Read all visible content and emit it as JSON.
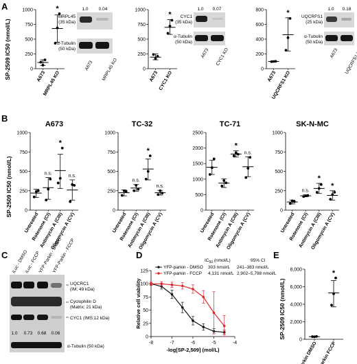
{
  "panels": {
    "A": "A",
    "B": "B",
    "C": "C",
    "D": "D",
    "E": "E"
  },
  "shared_ylabel_ic50": "SP-2509 IC50 (nmol/L)",
  "chart_data": [
    {
      "id": "A1",
      "type": "scatter",
      "categories": [
        "A673",
        "MRPL45 KO"
      ],
      "ylim": [
        0,
        1000
      ],
      "yticks": [
        0,
        250,
        500,
        750,
        1000
      ],
      "groups": [
        [
          110,
          60,
          150
        ],
        [
          430,
          690,
          930
        ]
      ],
      "mean": [
        105,
        680
      ],
      "sd_low": [
        55,
        450
      ],
      "sd_high": [
        150,
        910
      ],
      "sig": [
        "",
        "*"
      ]
    },
    {
      "id": "A2",
      "type": "scatter",
      "categories": [
        "A673",
        "CYC1 KO"
      ],
      "ylim": [
        0,
        1000
      ],
      "yticks": [
        0,
        250,
        500,
        750,
        1000
      ],
      "groups": [
        [
          240,
          170,
          210
        ],
        [
          600,
          720,
          820
        ]
      ],
      "mean": [
        195,
        700
      ],
      "sd_low": [
        150,
        580
      ],
      "sd_high": [
        250,
        830
      ],
      "sig": [
        "",
        "*"
      ]
    },
    {
      "id": "A3",
      "type": "scatter",
      "categories": [
        "A673",
        "UQCRFS1 KO"
      ],
      "ylim": [
        0,
        800
      ],
      "yticks": [
        0,
        200,
        400,
        600,
        800
      ],
      "groups": [
        [
          95,
          98,
          100
        ],
        [
          250,
          420,
          680
        ]
      ],
      "mean": [
        98,
        460
      ],
      "sd_low": [
        92,
        240
      ],
      "sd_high": [
        102,
        690
      ],
      "sig": [
        "",
        "*"
      ]
    },
    {
      "id": "B1",
      "title": "A673",
      "type": "scatter",
      "categories": [
        "Untreated",
        "Rotenone (CI)",
        "Antimycin A (CIII)",
        "Oligomycin A (CV)"
      ],
      "ylim": [
        0,
        1000
      ],
      "yticks": [
        0,
        250,
        500,
        750,
        1000
      ],
      "groups": [
        [
          170,
          240,
          250
        ],
        [
          130,
          270,
          400
        ],
        [
          350,
          410,
          800
        ],
        [
          110,
          330,
          320
        ]
      ],
      "mean": [
        220,
        290,
        510,
        260
      ],
      "sd_low": [
        165,
        140,
        280,
        130
      ],
      "sd_high": [
        270,
        420,
        720,
        390
      ],
      "sig": [
        "",
        "n.s.",
        "*",
        "n.s."
      ]
    },
    {
      "id": "B2",
      "title": "TC-32",
      "type": "scatter",
      "categories": [
        "Untreated",
        "Rotenone (CI)",
        "Antimycin A (CIII)",
        "Oligomycin A (CV)"
      ],
      "ylim": [
        0,
        1000
      ],
      "yticks": [
        0,
        250,
        500,
        750,
        1000
      ],
      "groups": [
        [
          190,
          250,
          240
        ],
        [
          250,
          320,
          270
        ],
        [
          400,
          500,
          700
        ],
        [
          200,
          250,
          220
        ]
      ],
      "mean": [
        225,
        285,
        530,
        225
      ],
      "sd_low": [
        185,
        245,
        390,
        195
      ],
      "sd_high": [
        260,
        330,
        660,
        255
      ],
      "sig": [
        "",
        "n.s.",
        "*",
        "n.s."
      ]
    },
    {
      "id": "B3",
      "title": "TC-71",
      "type": "scatter",
      "categories": [
        "Untreated",
        "Rotenone (CI)",
        "Antimycin A (CIII)",
        "Oligomycin A (CV)"
      ],
      "ylim": [
        0,
        2500
      ],
      "yticks": [
        0,
        500,
        1000,
        1500,
        2000,
        2500
      ],
      "groups": [
        [
          1150,
          1370,
          1650
        ],
        [
          780,
          950,
          880
        ],
        [
          1750,
          1850,
          1800
        ],
        [
          1050,
          1350,
          1700
        ]
      ],
      "mean": [
        1380,
        870,
        1810,
        1400
      ],
      "sd_low": [
        1150,
        730,
        1710,
        1080
      ],
      "sd_high": [
        1610,
        1010,
        1910,
        1720
      ],
      "sig": [
        "",
        "",
        "*",
        "n.s."
      ]
    },
    {
      "id": "B4",
      "title": "SK-N-MC",
      "type": "scatter",
      "categories": [
        "Untreated",
        "Rotenone (CI)",
        "Antimycin A (CIII)",
        "Oligomycin A (CV)"
      ],
      "ylim": [
        0,
        1000
      ],
      "yticks": [
        0,
        250,
        500,
        750,
        1000
      ],
      "groups": [
        [
          85,
          120,
          110
        ],
        [
          175,
          185,
          190
        ],
        [
          230,
          280,
          330
        ],
        [
          140,
          200,
          230
        ]
      ],
      "mean": [
        105,
        185,
        280,
        190
      ],
      "sd_low": [
        80,
        172,
        215,
        130
      ],
      "sd_high": [
        130,
        198,
        345,
        250
      ],
      "sig": [
        "",
        "n.s.",
        "*",
        "*"
      ]
    },
    {
      "id": "D",
      "type": "line",
      "xlabel": "-log[SP-2,509] (mol/L)",
      "ylabel": "Relative cell viability",
      "xlim": [
        -8,
        -4
      ],
      "ylim": [
        0,
        125
      ],
      "xticks": [
        -8,
        -7,
        -6,
        -5,
        -4
      ],
      "yticks": [
        0,
        25,
        50,
        75,
        100,
        125
      ],
      "series": [
        {
          "name": "YFP-parkin - DMSO",
          "color": "#111111",
          "x": [
            -8,
            -7.5,
            -7,
            -6.5,
            -6,
            -5.5,
            -5,
            -4.5
          ],
          "y": [
            100,
            95,
            80,
            55,
            30,
            18,
            10,
            8
          ],
          "err": [
            3,
            5,
            8,
            10,
            8,
            6,
            5,
            4
          ]
        },
        {
          "name": "YFP-parkin - FCCP",
          "color": "#e3262b",
          "x": [
            -8,
            -7.5,
            -7,
            -6.5,
            -6,
            -5.5,
            -5,
            -4.5
          ],
          "y": [
            100,
            100,
            98,
            96,
            90,
            75,
            45,
            20
          ],
          "err": [
            3,
            4,
            5,
            6,
            8,
            12,
            40,
            20
          ]
        }
      ],
      "legend_header": {
        "ic": "IC",
        "ic_sub": "50",
        "unit": " (nmol/L)",
        "ci": "95% CI"
      },
      "legend_values": [
        {
          "ic": "303 nmol/L",
          "ci": "241–383 nmol/L"
        },
        {
          "ic": "4,131 nmol/L",
          "ci": "2,902–5,798 nmol/L"
        }
      ]
    },
    {
      "id": "E",
      "type": "scatter",
      "categories": [
        "YFP-Parkin DMSO",
        "YFP-Parkin FCCP"
      ],
      "ylim": [
        0,
        8000
      ],
      "yticks": [
        0,
        2000,
        4000,
        6000,
        8000
      ],
      "ytick_labels": [
        "0",
        "2,000",
        "4,000",
        "6,000",
        "8,000"
      ],
      "groups": [
        [
          300,
          280,
          320
        ],
        [
          3900,
          5200,
          7000
        ]
      ],
      "mean": [
        300,
        5300
      ],
      "sd_low": [
        260,
        3700
      ],
      "sd_high": [
        340,
        6700
      ],
      "sig": [
        "",
        "*"
      ]
    }
  ],
  "blots": {
    "a1": {
      "quant": [
        "1.0",
        "0.04"
      ],
      "lane_labels": [
        "A673",
        "MRPL45 KO"
      ],
      "rows": [
        "MRPL45\n(35 kDa)",
        "α-Tubulin\n(50 kDa)"
      ]
    },
    "a2": {
      "quant": [
        "1.0",
        "0.07"
      ],
      "lane_labels": [
        "A673",
        "CYC1 KO"
      ],
      "rows": [
        "CYC1\n(35 kDa)",
        "α-Tubulin\n(50 kDa)"
      ]
    },
    "a3": {
      "quant": [
        "1.0",
        "0.18"
      ],
      "lane_labels": [
        "A673",
        "UQCRFS1 KO"
      ],
      "rows": [
        "UQCRFS1\n(25 kDa)",
        "α-Tubulin\n(50 kDa)"
      ]
    },
    "c": {
      "lanes": [
        "iLuc - DMSO",
        "iLuc - FCCP",
        "YFP-Parkin - DMSO",
        "YFP-Parkin - FCCP"
      ],
      "quant": [
        "1.0",
        "0.73",
        "0.68",
        "0.06"
      ],
      "labels": [
        "UQCRC1",
        "(IM; 49 kDa)",
        "Cyclophilin D",
        "(Matrix; 21 kDa)",
        "CYC1 (IMS;12 kDa)",
        "α-Tubulin (50 kDa)"
      ]
    }
  }
}
